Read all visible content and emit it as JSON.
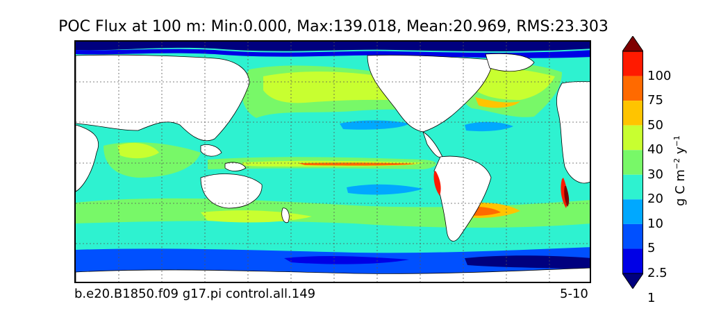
{
  "title": "POC Flux at 100 m: Min:0.000, Max:139.018, Mean:20.969, RMS:23.303",
  "caption_left": "b.e20.B1850.f09 g17.pi control.all.149",
  "caption_right": "5-10",
  "colorbar": {
    "unit_prefix": "g C m",
    "unit_exp1": "−2",
    "unit_mid": " y",
    "unit_exp2": "−1",
    "ticks": [
      "100",
      "75",
      "50",
      "40",
      "30",
      "20",
      "10",
      "5",
      "2.5",
      "1"
    ],
    "levels": [
      {
        "color": "#7f0000"
      },
      {
        "color": "#ff1a00"
      },
      {
        "color": "#ff6a00"
      },
      {
        "color": "#ffc400"
      },
      {
        "color": "#c8ff30"
      },
      {
        "color": "#78f868"
      },
      {
        "color": "#2ef2d0"
      },
      {
        "color": "#00a8ff"
      },
      {
        "color": "#0050ff"
      },
      {
        "color": "#0000e6"
      },
      {
        "color": "#00007f"
      }
    ]
  },
  "map": {
    "land_color": "#ffffff",
    "ocean_base_color": "#2ef2d0",
    "gridlines": "dotted",
    "projection": "global lat-lon"
  }
}
